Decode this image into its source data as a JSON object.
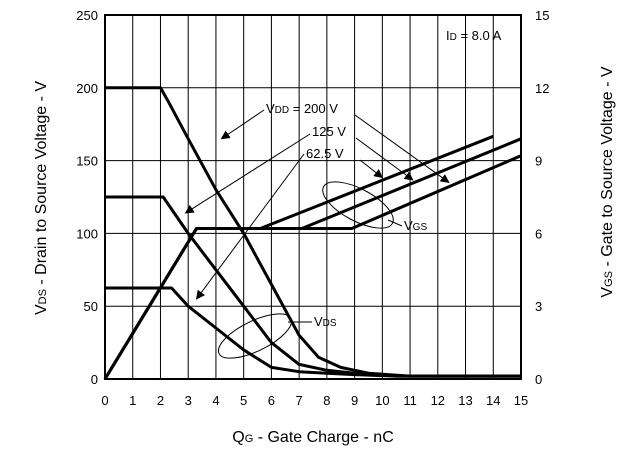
{
  "chart_data": {
    "type": "line",
    "xlabel_main": "Q",
    "xlabel_sub": "G",
    "xlabel_rest": " - Gate Charge - nC",
    "ylabel_left_main": "V",
    "ylabel_left_sub": "DS",
    "ylabel_left_rest": " - Drain to Source Voltage - V",
    "ylabel_right_main": "V",
    "ylabel_right_sub": "GS",
    "ylabel_right_rest": " - Gate to Source Voltage - V",
    "xlim": [
      0,
      15
    ],
    "ylim_left": [
      0,
      250
    ],
    "ylim_right": [
      0,
      15
    ],
    "x_ticks": [
      "0",
      "1",
      "2",
      "3",
      "4",
      "5",
      "6",
      "7",
      "8",
      "9",
      "10",
      "11",
      "12",
      "13",
      "14",
      "15"
    ],
    "y_left_ticks": [
      "0",
      "50",
      "100",
      "150",
      "200",
      "250"
    ],
    "y_right_ticks": [
      "0",
      "3",
      "6",
      "9",
      "12",
      "15"
    ],
    "grid": true,
    "condition": {
      "main": "I",
      "sub": "D",
      "rest": " = 8.0 A"
    },
    "vdd_labels": [
      {
        "main": "V",
        "sub": "DD",
        "rest": " = 200 V"
      },
      {
        "main": "",
        "sub": "",
        "rest": "125 V"
      },
      {
        "main": "",
        "sub": "",
        "rest": "62.5 V"
      }
    ],
    "vgs_label": {
      "main": "V",
      "sub": "GS"
    },
    "vds_label": {
      "main": "V",
      "sub": "DS"
    },
    "series": [
      {
        "curve": "VDS",
        "vdd": 200,
        "axis": "left",
        "x": [
          0,
          2.0,
          2.3,
          3.0,
          4.0,
          5.0,
          6.0,
          7.0,
          7.7,
          8.5,
          9.5,
          11.0,
          15.0
        ],
        "y": [
          200,
          200,
          190,
          165,
          130,
          100,
          65,
          30,
          15,
          8,
          4,
          2,
          2
        ]
      },
      {
        "curve": "VDS",
        "vdd": 125,
        "axis": "left",
        "x": [
          0,
          2.1,
          3.0,
          4.0,
          5.0,
          6.0,
          7.0,
          8.0,
          9.0,
          10.5,
          15.0
        ],
        "y": [
          125,
          125,
          100,
          75,
          50,
          25,
          10,
          6,
          4,
          2,
          2
        ]
      },
      {
        "curve": "VDS",
        "vdd": 62.5,
        "axis": "left",
        "x": [
          0,
          2.4,
          3.0,
          4.0,
          5.0,
          6.0,
          7.0,
          8.0,
          9.0,
          10.5,
          15.0
        ],
        "y": [
          62.5,
          62.5,
          50,
          35,
          20,
          8,
          5,
          4,
          3,
          2,
          2
        ]
      },
      {
        "curve": "VGS",
        "vdd": 200,
        "axis": "right",
        "x": [
          0,
          3.3,
          8.9,
          15.0
        ],
        "y": [
          0,
          6.2,
          6.2,
          9.2
        ]
      },
      {
        "curve": "VGS",
        "vdd": 125,
        "axis": "right",
        "x": [
          0,
          3.3,
          7.1,
          15.0
        ],
        "y": [
          0,
          6.2,
          6.2,
          9.9
        ]
      },
      {
        "curve": "VGS",
        "vdd": 62.5,
        "axis": "right",
        "x": [
          0,
          3.3,
          5.6,
          14.0
        ],
        "y": [
          0,
          6.2,
          6.2,
          10.0
        ]
      }
    ]
  }
}
